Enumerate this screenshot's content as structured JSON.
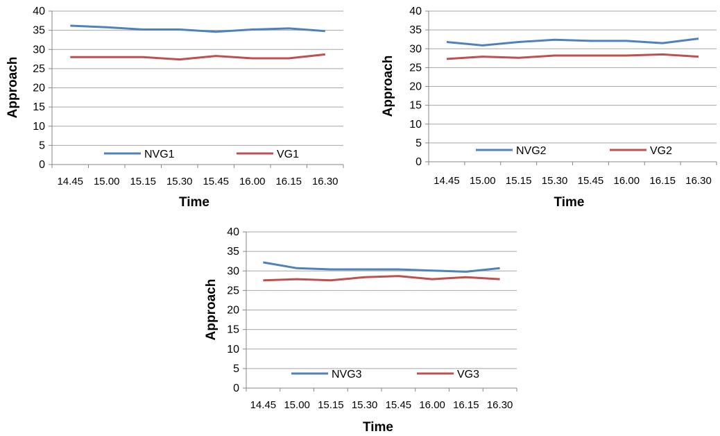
{
  "chart_data": [
    {
      "type": "line",
      "title": "",
      "xlabel": "Time",
      "ylabel": "Approach",
      "categories": [
        "14.45",
        "15.00",
        "15.15",
        "15.30",
        "15.45",
        "16.00",
        "16.15",
        "16.30"
      ],
      "ylim": [
        0,
        40
      ],
      "yticks": [
        "0",
        "5",
        "10",
        "15",
        "20",
        "25",
        "30",
        "35",
        "40"
      ],
      "grid": true,
      "legend": "bottom-inside",
      "series": [
        {
          "name": "NVG1",
          "color": "#4f81bd",
          "values": [
            36.2,
            35.8,
            35.2,
            35.2,
            34.6,
            35.2,
            35.5,
            34.8
          ]
        },
        {
          "name": "VG1",
          "color": "#c0504d",
          "values": [
            28.0,
            28.0,
            28.0,
            27.4,
            28.3,
            27.7,
            27.7,
            28.7
          ]
        }
      ]
    },
    {
      "type": "line",
      "title": "",
      "xlabel": "Time",
      "ylabel": "Approach",
      "categories": [
        "14.45",
        "15.00",
        "15.15",
        "15.30",
        "15.45",
        "16.00",
        "16.15",
        "16.30"
      ],
      "ylim": [
        0,
        40
      ],
      "yticks": [
        "0",
        "5",
        "10",
        "15",
        "20",
        "25",
        "30",
        "35",
        "40"
      ],
      "grid": true,
      "legend": "bottom-inside",
      "series": [
        {
          "name": "NVG2",
          "color": "#4f81bd",
          "values": [
            31.8,
            30.9,
            31.8,
            32.4,
            32.1,
            32.1,
            31.5,
            32.7
          ]
        },
        {
          "name": "VG2",
          "color": "#c0504d",
          "values": [
            27.3,
            27.9,
            27.6,
            28.2,
            28.2,
            28.2,
            28.5,
            27.9
          ]
        }
      ]
    },
    {
      "type": "line",
      "title": "",
      "xlabel": "Time",
      "ylabel": "Approach",
      "categories": [
        "14.45",
        "15.00",
        "15.15",
        "15.30",
        "15.45",
        "16.00",
        "16.15",
        "16.30"
      ],
      "ylim": [
        0,
        40
      ],
      "yticks": [
        "0",
        "5",
        "10",
        "15",
        "20",
        "25",
        "30",
        "35",
        "40"
      ],
      "grid": true,
      "legend": "bottom-inside",
      "series": [
        {
          "name": "NVG3",
          "color": "#4f81bd",
          "values": [
            32.2,
            30.7,
            30.4,
            30.4,
            30.4,
            30.1,
            29.8,
            30.7
          ]
        },
        {
          "name": "VG3",
          "color": "#c0504d",
          "values": [
            27.6,
            27.9,
            27.6,
            28.4,
            28.7,
            27.9,
            28.4,
            27.9
          ]
        }
      ]
    }
  ]
}
